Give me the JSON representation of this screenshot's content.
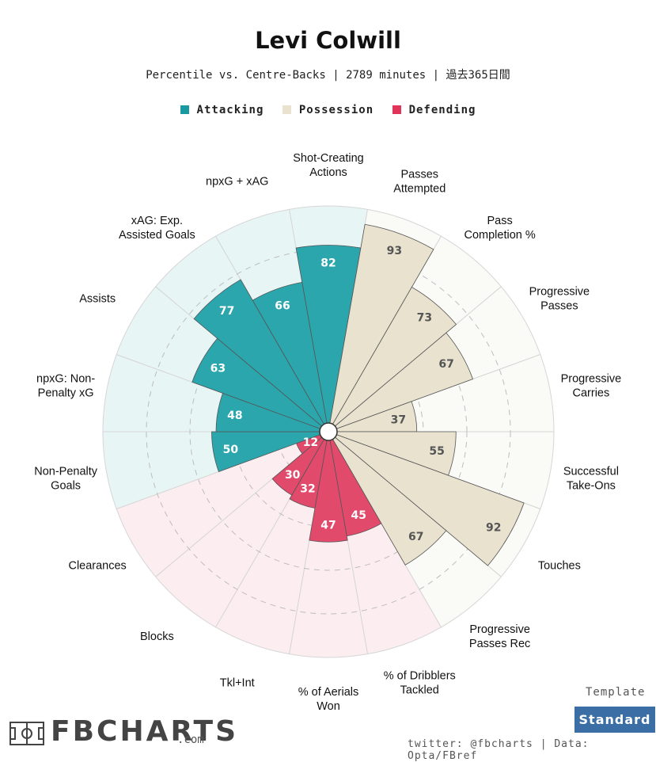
{
  "header": {
    "title": "Levi Colwill",
    "subtitle": "Percentile vs. Centre-Backs | 2789 minutes | 過去365日間"
  },
  "legend": [
    {
      "label": "Attacking",
      "color": "#1a9aa0"
    },
    {
      "label": "Possession",
      "color": "#e8e2cf"
    },
    {
      "label": "Defending",
      "color": "#e0345a"
    }
  ],
  "colors": {
    "Attacking": {
      "fill": "#2ba6ad",
      "bg": "#e8f5f5",
      "text": "#ffffff"
    },
    "Possession": {
      "fill": "#e8e2cf",
      "bg": "#fafaf7",
      "text": "#555555"
    },
    "Defending": {
      "fill": "#e24a6b",
      "bg": "#fcedf0",
      "text": "#ffffff"
    }
  },
  "chart_data": {
    "type": "polar-bar",
    "rlim": [
      0,
      100
    ],
    "grid": true,
    "categories": [
      {
        "label": "Shot-Creating Actions",
        "group": "Attacking",
        "value": 82
      },
      {
        "label": "Passes Attempted",
        "group": "Possession",
        "value": 93
      },
      {
        "label": "Pass Completion %",
        "group": "Possession",
        "value": 73
      },
      {
        "label": "Progressive Passes",
        "group": "Possession",
        "value": 67
      },
      {
        "label": "Progressive Carries",
        "group": "Possession",
        "value": 37
      },
      {
        "label": "Successful Take-Ons",
        "group": "Possession",
        "value": 55
      },
      {
        "label": "Touches",
        "group": "Possession",
        "value": 92
      },
      {
        "label": "Progressive Passes Rec",
        "group": "Possession",
        "value": 67
      },
      {
        "label": "% of Dribblers Tackled",
        "group": "Defending",
        "value": 45
      },
      {
        "label": "% of Aerials Won",
        "group": "Defending",
        "value": 47
      },
      {
        "label": "Tkl+Int",
        "group": "Defending",
        "value": 32
      },
      {
        "label": "Blocks",
        "group": "Defending",
        "value": 30
      },
      {
        "label": "Clearances",
        "group": "Defending",
        "value": 12
      },
      {
        "label": "Non-Penalty Goals",
        "group": "Attacking",
        "value": 50
      },
      {
        "label": "npxG: Non-Penalty xG",
        "group": "Attacking",
        "value": 48
      },
      {
        "label": "Assists",
        "group": "Attacking",
        "value": 63
      },
      {
        "label": "xAG: Exp. Assisted Goals",
        "group": "Attacking",
        "value": 77
      },
      {
        "label": "npxG + xAG",
        "group": "Attacking",
        "value": 66
      }
    ],
    "label_lines": [
      [
        "Shot-Creating",
        "Actions"
      ],
      [
        "Passes",
        "Attempted"
      ],
      [
        "Pass",
        "Completion %"
      ],
      [
        "Progressive",
        "Passes"
      ],
      [
        "Progressive",
        "Carries"
      ],
      [
        "Successful",
        "Take-Ons"
      ],
      [
        "Touches"
      ],
      [
        "Progressive",
        "Passes Rec"
      ],
      [
        "% of Dribblers",
        "Tackled"
      ],
      [
        "% of Aerials",
        "Won"
      ],
      [
        "Tkl+Int"
      ],
      [
        "Blocks"
      ],
      [
        "Clearances"
      ],
      [
        "Non-Penalty",
        "Goals"
      ],
      [
        "npxG: Non-",
        "Penalty xG"
      ],
      [
        "Assists"
      ],
      [
        "xAG: Exp.",
        "Assisted Goals"
      ],
      [
        "npxG + xAG"
      ]
    ]
  },
  "footer": {
    "template_label": "Template",
    "template_value": "Standard",
    "credit": "twitter: @fbcharts | Data: Opta/FBref",
    "logo_text": "FBCHARTS",
    "logo_suffix": ".com"
  }
}
